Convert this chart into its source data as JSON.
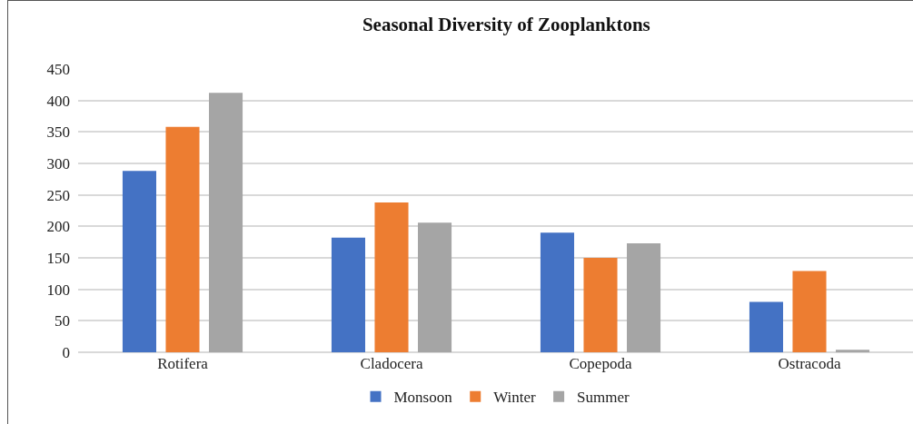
{
  "chart_data": {
    "type": "bar",
    "title": "Seasonal Diversity of Zooplanktons",
    "categories": [
      "Rotifera",
      "Cladocera",
      "Copepoda",
      "Ostracoda"
    ],
    "series": [
      {
        "name": "Monsoon",
        "color": "#4472c4",
        "values": [
          288,
          182,
          190,
          80
        ]
      },
      {
        "name": "Winter",
        "color": "#ed7d31",
        "values": [
          358,
          238,
          150,
          129
        ]
      },
      {
        "name": "Summer",
        "color": "#a5a5a5",
        "values": [
          412,
          206,
          173,
          4
        ]
      }
    ],
    "ylim": [
      0,
      450
    ],
    "yticks": [
      0,
      50,
      100,
      150,
      200,
      250,
      300,
      350,
      400,
      450
    ],
    "grid": "y",
    "legend": "bottom"
  }
}
